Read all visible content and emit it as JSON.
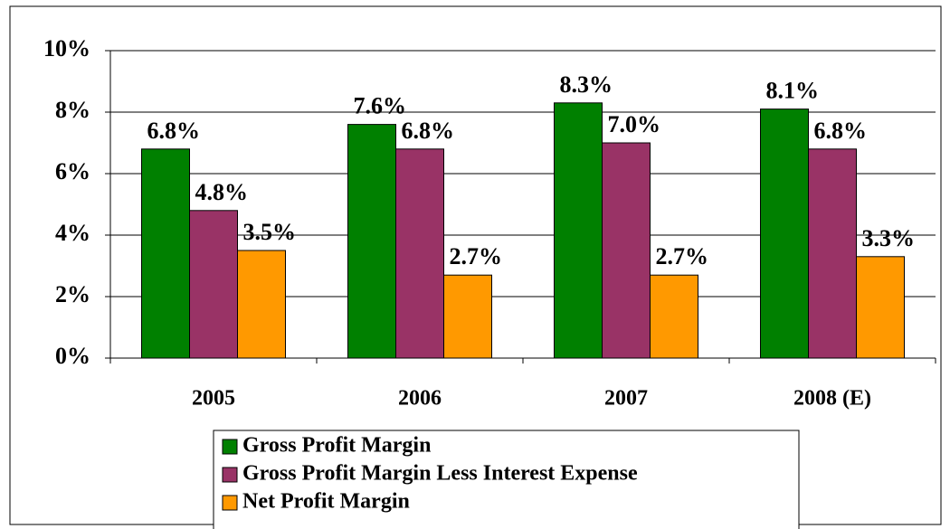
{
  "chart_data": {
    "type": "bar",
    "categories": [
      "2005",
      "2006",
      "2007",
      "2008 (E)"
    ],
    "series": [
      {
        "name": "Gross Profit Margin",
        "color": "#008000",
        "values": [
          6.8,
          7.6,
          8.3,
          8.1
        ],
        "value_labels": [
          "6.8%",
          "7.6%",
          "8.3%",
          "8.1%"
        ]
      },
      {
        "name": "Gross Profit Margin Less Interest Expense",
        "color": "#993366",
        "values": [
          4.8,
          6.8,
          7.0,
          6.8
        ],
        "value_labels": [
          "4.8%",
          "6.8%",
          "7.0%",
          "6.8%"
        ]
      },
      {
        "name": "Net Profit Margin",
        "color": "#ff9900",
        "values": [
          3.5,
          2.7,
          2.7,
          3.3
        ],
        "value_labels": [
          "3.5%",
          "2.7%",
          "2.7%",
          "3.3%"
        ]
      }
    ],
    "ylim": [
      0,
      10
    ],
    "yticks": [
      {
        "value": 0,
        "label": "0%"
      },
      {
        "value": 2,
        "label": "2%"
      },
      {
        "value": 4,
        "label": "4%"
      },
      {
        "value": 6,
        "label": "6%"
      },
      {
        "value": 8,
        "label": "8%"
      },
      {
        "value": 10,
        "label": "10%"
      }
    ],
    "grid": true,
    "legend": "bottom"
  }
}
